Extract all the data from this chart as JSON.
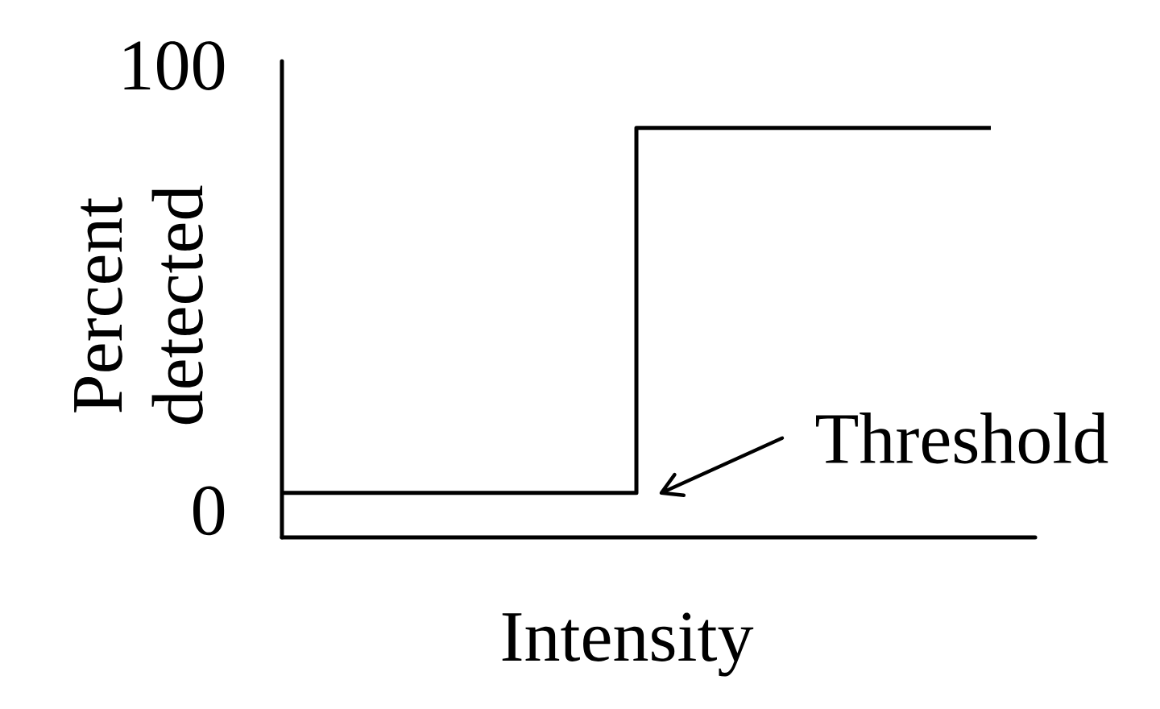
{
  "chart_data": {
    "type": "step",
    "xlabel": "Intensity",
    "ylabel": "Percent detected",
    "categories": [
      null,
      null
    ],
    "values": [
      4,
      86
    ],
    "color": "#000000",
    "ylim": [
      -6,
      101
    ],
    "yticks": [
      0,
      100
    ],
    "tick_labels": "y",
    "annotations": [
      "Threshold"
    ]
  }
}
